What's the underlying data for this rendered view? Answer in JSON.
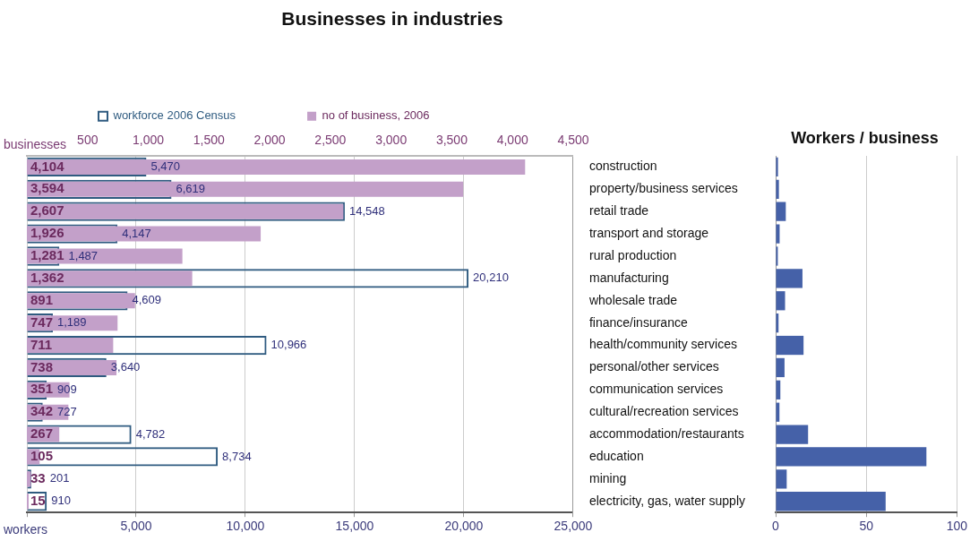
{
  "chart_data": [
    {
      "type": "bar",
      "title": "Businesses in industries",
      "orientation": "horizontal",
      "categories": [
        "construction",
        "property/business services",
        "retail trade",
        "transport and storage",
        "rural production",
        "manufacturing",
        "wholesale trade",
        "finance/insurance",
        "health/community services",
        "personal/other services",
        "communication services",
        "cultural/recreation services",
        "accommodation/restaurants",
        "education",
        "mining",
        "electricity, gas, water supply"
      ],
      "series": [
        {
          "name": "workforce 2006 Census",
          "color": "#2f5b80",
          "values": [
            5470,
            6619,
            14548,
            4147,
            1487,
            20210,
            4609,
            1189,
            10966,
            3640,
            909,
            727,
            4782,
            8734,
            201,
            910
          ],
          "value_labels": [
            "5,470",
            "6,619",
            "14,548",
            "4,147",
            "1,487",
            "20,210",
            "4,609",
            "1,189",
            "10,966",
            "3,640",
            "909",
            "727",
            "4,782",
            "8,734",
            "201",
            "910"
          ]
        },
        {
          "name": "no of business, 2006",
          "color": "#c3a0c9",
          "axis": "x2",
          "values": [
            4104,
            3594,
            2607,
            1926,
            1281,
            1362,
            891,
            747,
            711,
            738,
            351,
            342,
            267,
            105,
            33,
            15
          ],
          "value_labels": [
            "4,104",
            "3,594",
            "2,607",
            "1,926",
            "1,281",
            "1,362",
            "891",
            "747",
            "711",
            "738",
            "351",
            "342",
            "267",
            "105",
            "33",
            "15"
          ]
        }
      ],
      "xlabel": "workers",
      "x2label": "businesses",
      "xlim": [
        0,
        25000
      ],
      "xticks": [
        {
          "value": 0,
          "label": null
        },
        {
          "value": 5000,
          "label": "5,000"
        },
        {
          "value": 10000,
          "label": "10,000"
        },
        {
          "value": 15000,
          "label": "15,000"
        },
        {
          "value": 20000,
          "label": "20,000"
        },
        {
          "value": 25000,
          "label": "25,000"
        }
      ],
      "x2lim": [
        0,
        4500
      ],
      "x2ticks": [
        {
          "value": 0,
          "label": null
        },
        {
          "value": 500,
          "label": "500"
        },
        {
          "value": 1000,
          "label": "1,000"
        },
        {
          "value": 1500,
          "label": "1,500"
        },
        {
          "value": 2000,
          "label": "2,000"
        },
        {
          "value": 2500,
          "label": "2,500"
        },
        {
          "value": 3000,
          "label": "3,000"
        },
        {
          "value": 3500,
          "label": "3,500"
        },
        {
          "value": 4000,
          "label": "4,000"
        },
        {
          "value": 4500,
          "label": "4,500"
        }
      ],
      "grid": "x",
      "legend": "top left"
    },
    {
      "type": "bar",
      "title": "Workers / business",
      "orientation": "horizontal",
      "categories": [
        null,
        null,
        null,
        null,
        null,
        null,
        null,
        null,
        null,
        null,
        null,
        null,
        null,
        null,
        null,
        null
      ],
      "values": [
        1.3,
        1.8,
        5.6,
        2.2,
        1.2,
        14.8,
        5.2,
        1.6,
        15.4,
        4.9,
        2.6,
        2.1,
        17.9,
        83.2,
        6.1,
        60.7
      ],
      "color": "#4561a8",
      "xlim": [
        0,
        100
      ],
      "xticks": [
        0,
        50,
        100
      ],
      "grid": "x",
      "tick_labels": "x"
    }
  ]
}
